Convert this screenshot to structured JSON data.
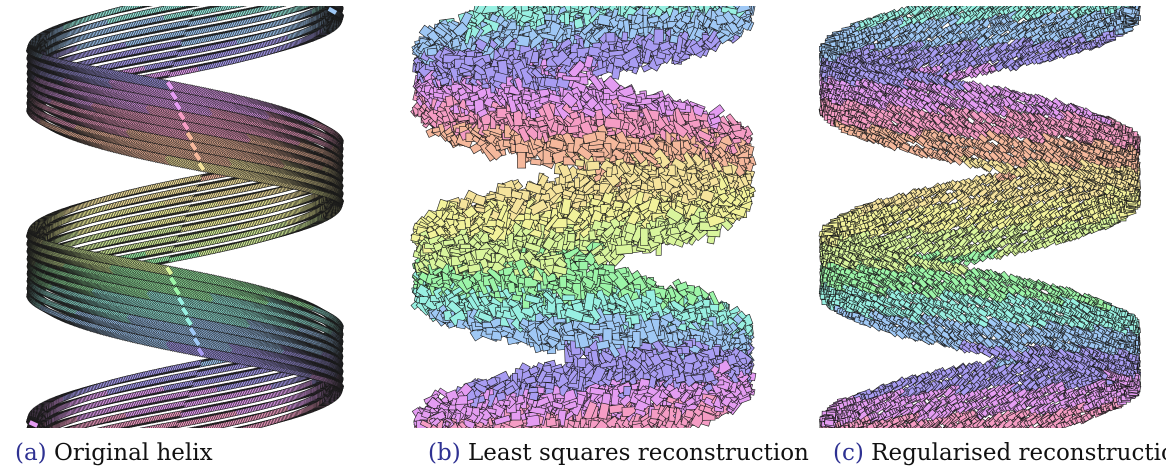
{
  "colors": {
    "caption_tag": "#2e3192",
    "caption_text": "#111111",
    "tile_edge": "#1a1a1a",
    "palette": [
      "#f2f29a",
      "#d9f59c",
      "#9cf5a8",
      "#98f0e2",
      "#9fc8f5",
      "#a89cf2",
      "#e49cf2",
      "#f59cc4",
      "#f5b89c",
      "#f5e39c"
    ]
  },
  "panels": [
    {
      "id": "a",
      "tag": "(a)",
      "text": "Original helix",
      "visual": "helix-of-small-colored-tiles-ordered"
    },
    {
      "id": "b",
      "tag": "(b)",
      "text": "Least squares reconstruction",
      "visual": "helix-of-small-colored-tiles-noisy"
    },
    {
      "id": "c",
      "tag": "(c)",
      "text": "Regularised reconstruction",
      "visual": "helix-of-small-colored-tiles-smoothed"
    }
  ]
}
